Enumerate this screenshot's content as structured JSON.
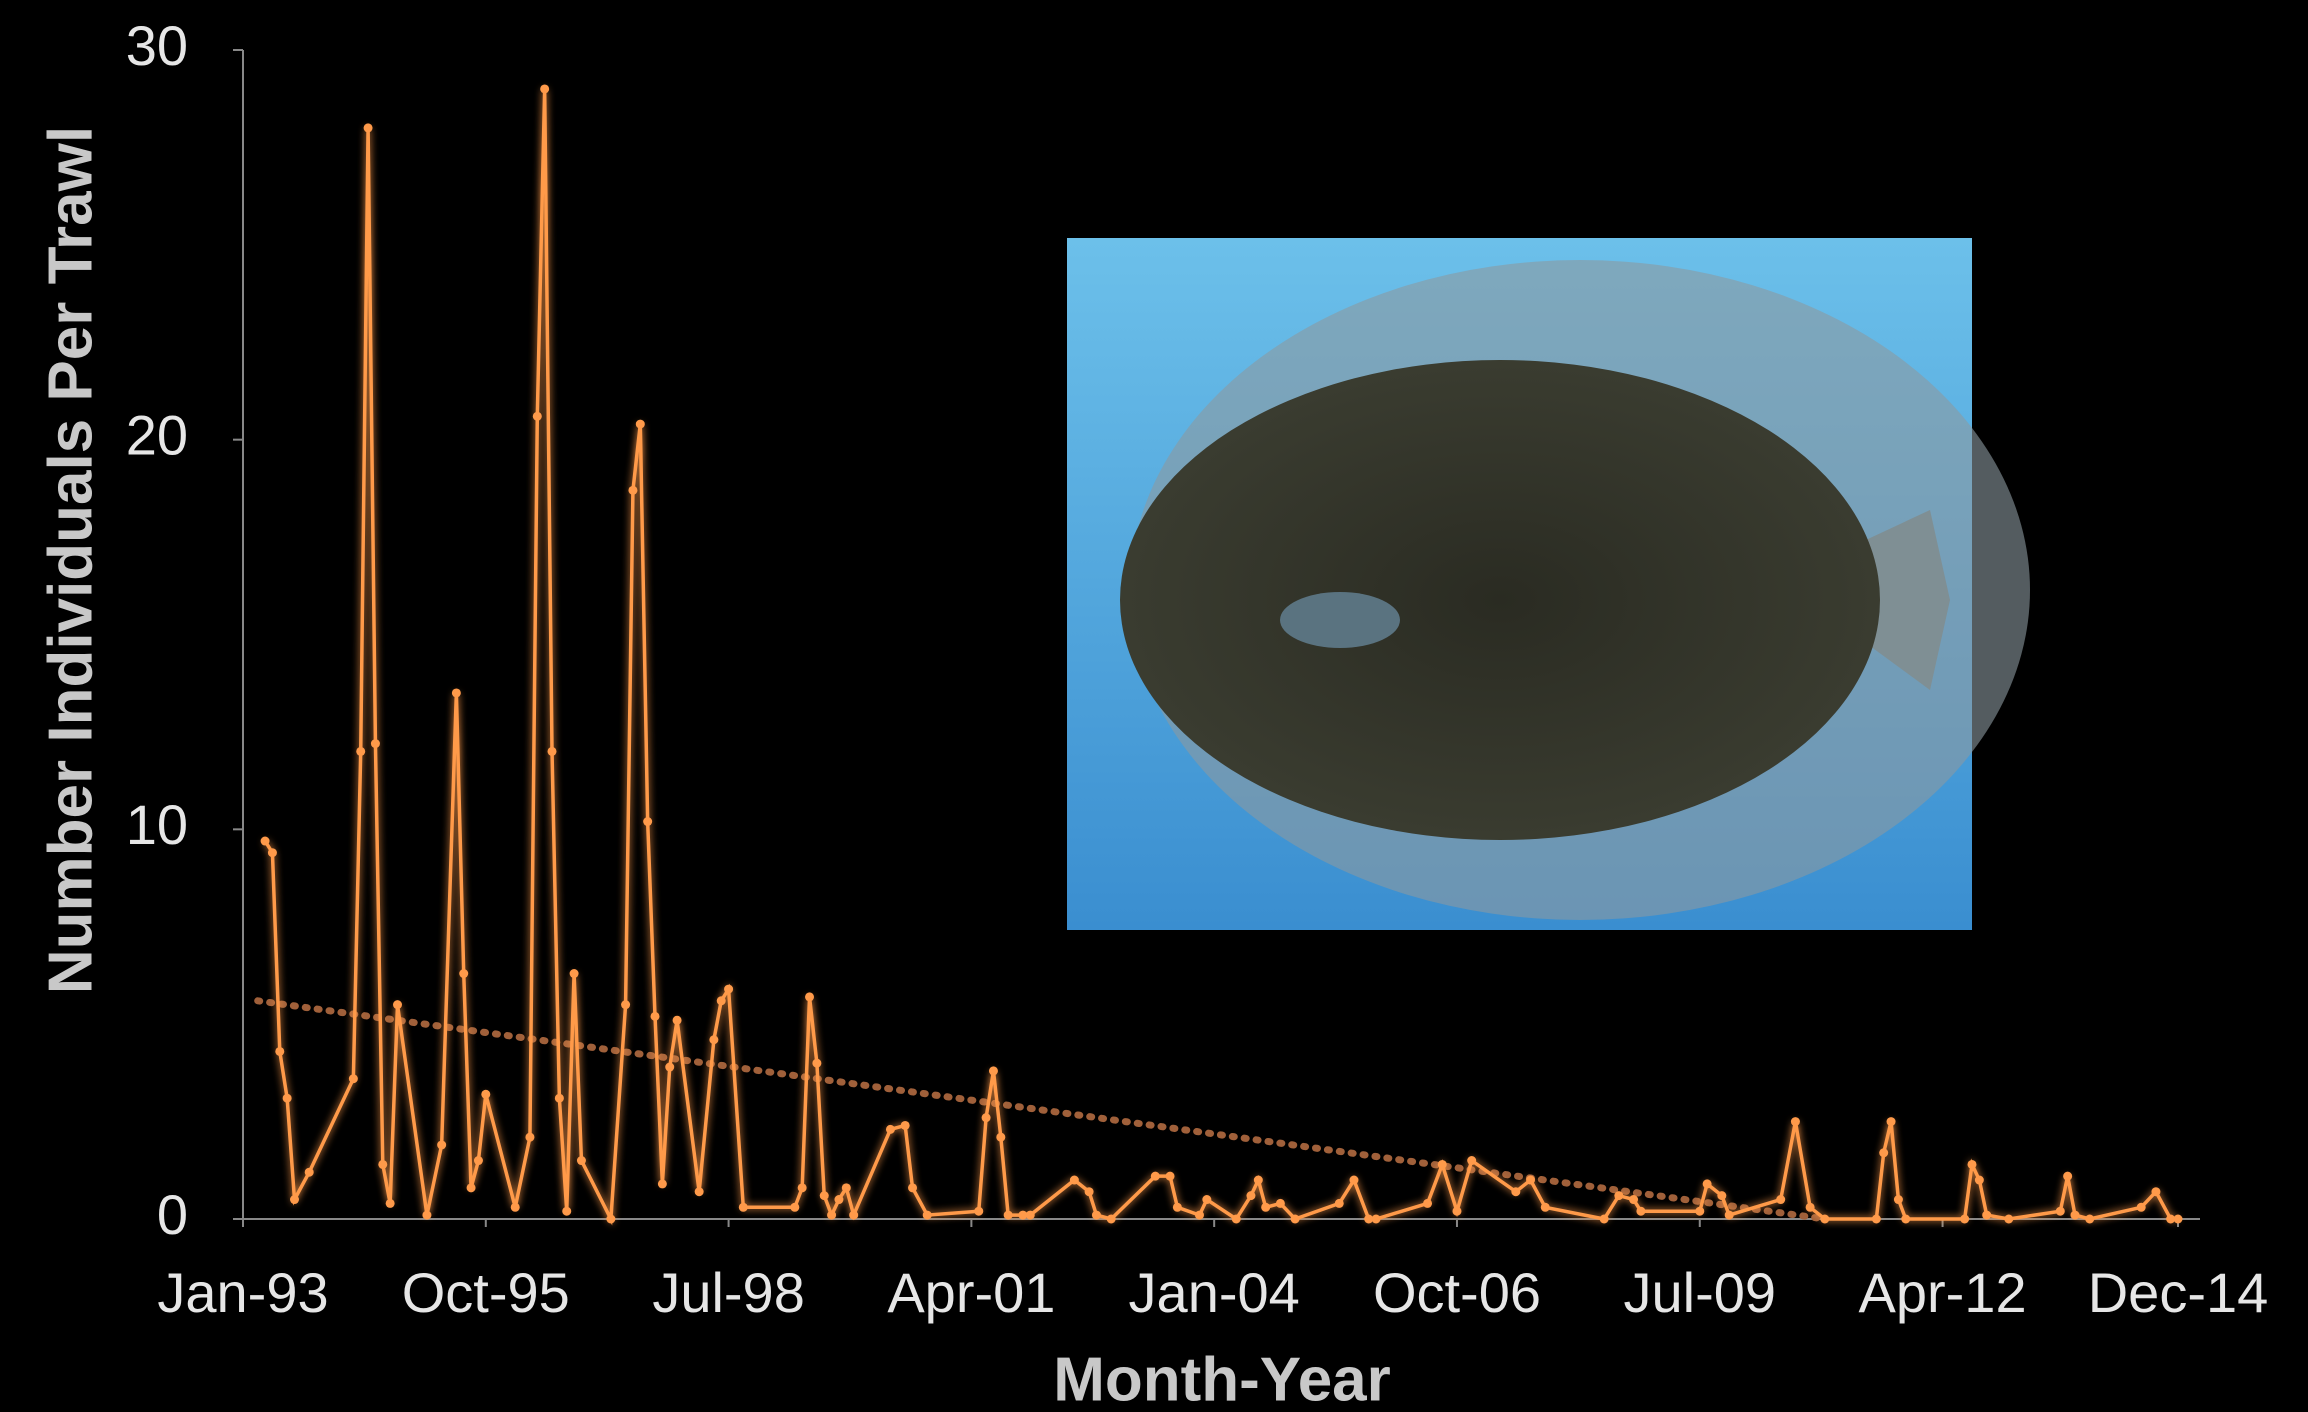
{
  "chart_data": {
    "type": "line",
    "x_label": "Month-Year",
    "y_label": "Number Individuals Per Trawl",
    "x": [
      "1993-04",
      "1993-05",
      "1993-06",
      "1993-07",
      "1993-08",
      "1993-10",
      "1994-04",
      "1994-05",
      "1994-06",
      "1994-07",
      "1994-08",
      "1994-09",
      "1994-10",
      "1995-02",
      "1995-04",
      "1995-06",
      "1995-07",
      "1995-08",
      "1995-09",
      "1995-10",
      "1996-02",
      "1996-04",
      "1996-05",
      "1996-06",
      "1996-07",
      "1996-08",
      "1996-09",
      "1996-10",
      "1996-11",
      "1997-03",
      "1997-05",
      "1997-06",
      "1997-07",
      "1997-08",
      "1997-09",
      "1997-10",
      "1997-11",
      "1997-12",
      "1998-03",
      "1998-05",
      "1998-06",
      "1998-07",
      "1998-09",
      "1999-04",
      "1999-05",
      "1999-06",
      "1999-07",
      "1999-08",
      "1999-09",
      "1999-10",
      "1999-11",
      "1999-12",
      "2000-05",
      "2000-07",
      "2000-08",
      "2000-10",
      "2001-05",
      "2001-06",
      "2001-07",
      "2001-08",
      "2001-09",
      "2001-11",
      "2001-12",
      "2002-06",
      "2002-08",
      "2002-09",
      "2002-11",
      "2003-05",
      "2003-07",
      "2003-08",
      "2003-11",
      "2003-12",
      "2004-04",
      "2004-06",
      "2004-07",
      "2004-08",
      "2004-10",
      "2004-12",
      "2005-06",
      "2005-08",
      "2005-10",
      "2005-11",
      "2006-06",
      "2006-08",
      "2006-10",
      "2006-12",
      "2007-06",
      "2007-08",
      "2007-10",
      "2008-06",
      "2008-08",
      "2008-10",
      "2008-11",
      "2009-07",
      "2009-08",
      "2009-10",
      "2009-11",
      "2010-06",
      "2010-08",
      "2010-10",
      "2010-12",
      "2011-07",
      "2011-08",
      "2011-09",
      "2011-10",
      "2011-11",
      "2012-07",
      "2012-08",
      "2012-09",
      "2012-10",
      "2013-01",
      "2013-08",
      "2013-09",
      "2013-10",
      "2013-12",
      "2014-07",
      "2014-09",
      "2014-11",
      "2014-12"
    ],
    "series": [
      {
        "color": "#ff9a4a",
        "values": [
          9.7,
          9.4,
          4.3,
          3.1,
          0.5,
          1.2,
          3.6,
          12,
          28,
          12.2,
          1.4,
          0.4,
          5.5,
          0.1,
          1.9,
          13.5,
          6.3,
          0.8,
          1.5,
          3.2,
          0.3,
          2.1,
          20.6,
          29,
          12,
          3.1,
          0.2,
          6.3,
          1.5,
          0,
          5.5,
          18.7,
          20.4,
          10.2,
          5.2,
          0.9,
          3.9,
          5.1,
          0.7,
          4.6,
          5.6,
          5.9,
          0.3,
          0.3,
          0.8,
          5.7,
          4.0,
          0.6,
          0.1,
          0.5,
          0.8,
          0.1,
          2.3,
          2.4,
          0.8,
          0.1,
          0.2,
          2.6,
          3.8,
          2.1,
          0.1,
          0.1,
          0.1,
          1.0,
          0.7,
          0.1,
          0,
          1.1,
          1.1,
          0.3,
          0.1,
          0.5,
          0,
          0.6,
          1.0,
          0.3,
          0.4,
          0,
          0.4,
          1.0,
          0,
          0,
          0.4,
          1.4,
          0.2,
          1.5,
          0.7,
          1.0,
          0.3,
          0,
          0.6,
          0.5,
          0.2,
          0.2,
          0.9,
          0.6,
          0.1,
          0.5,
          2.5,
          0.3,
          0,
          0,
          1.7,
          2.5,
          0.5,
          0,
          0,
          1.4,
          1.0,
          0.1,
          0,
          0.2,
          1.1,
          0.1,
          0,
          0.3,
          0.7,
          0,
          0
        ]
      }
    ],
    "trendline": {
      "color": "#a0603a",
      "x": [
        "1993-03",
        "2010-12"
      ],
      "values": [
        5.6,
        0
      ]
    },
    "xlim": [
      "1993-01",
      "2014-12"
    ],
    "xticks": [
      {
        "value": "1993-01",
        "label": "Jan-93"
      },
      {
        "value": "1995-10",
        "label": "Oct-95"
      },
      {
        "value": "1998-07",
        "label": "Jul-98"
      },
      {
        "value": "2001-04",
        "label": "Apr-01"
      },
      {
        "value": "2004-01",
        "label": "Jan-04"
      },
      {
        "value": "2006-10",
        "label": "Oct-06"
      },
      {
        "value": "2009-07",
        "label": "Jul-09"
      },
      {
        "value": "2012-04",
        "label": "Apr-12"
      },
      {
        "value": "2014-12",
        "label": "Dec-14"
      }
    ],
    "ylim": [
      0,
      30
    ],
    "yticks": [
      0,
      10,
      20,
      30
    ]
  }
}
